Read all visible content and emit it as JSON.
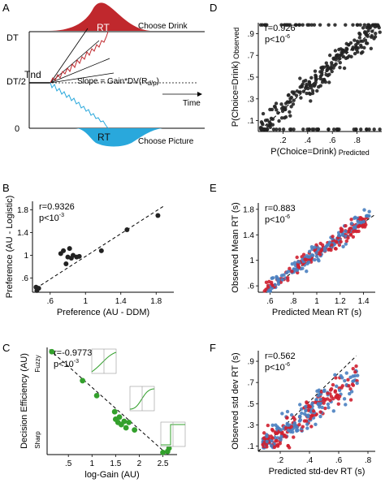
{
  "chart_data": [
    {
      "panel": "A",
      "type": "diagram",
      "labels": {
        "rt_top": "RT",
        "choose_drink": "Choose Drink",
        "dt": "DT",
        "dt_half": "DT/2",
        "tnd": "Tnd",
        "zero": "0",
        "slope": "Slope = Gain*DV(R",
        "slope_sub": "d/p",
        "slope_close": ")",
        "time": "Time",
        "rt_bottom": "RT",
        "choose_picture": "Choose Picture"
      },
      "colors": {
        "drink": "#c0282d",
        "picture": "#29a8dc"
      }
    },
    {
      "panel": "B",
      "type": "scatter",
      "xlabel": "Preference (AU - DDM)",
      "ylabel": "Preference (AU - Logistic)",
      "xlim": [
        0.4,
        2.0
      ],
      "ylim": [
        0.35,
        1.95
      ],
      "xticks": [
        {
          "v": 0.6,
          "t": ".6"
        },
        {
          "v": 1.0,
          "t": "1"
        },
        {
          "v": 1.4,
          "t": "1.4"
        },
        {
          "v": 1.8,
          "t": "1.8"
        }
      ],
      "yticks": [
        {
          "v": 0.6,
          "t": ".6"
        },
        {
          "v": 1.0,
          "t": "1"
        },
        {
          "v": 1.4,
          "t": "1.4"
        },
        {
          "v": 1.8,
          "t": "1.8"
        }
      ],
      "stats": [
        "r=0.9326",
        "p<10^-3"
      ],
      "fit": [
        [
          0.44,
          0.42
        ],
        [
          1.9,
          1.88
        ]
      ],
      "points": [
        [
          0.44,
          0.44
        ],
        [
          0.47,
          0.42
        ],
        [
          0.45,
          0.38
        ],
        [
          0.72,
          1.03
        ],
        [
          0.75,
          1.08
        ],
        [
          0.78,
          0.85
        ],
        [
          0.8,
          0.97
        ],
        [
          0.82,
          1.12
        ],
        [
          0.84,
          0.95
        ],
        [
          0.86,
          1.0
        ],
        [
          0.9,
          0.97
        ],
        [
          0.93,
          0.98
        ],
        [
          1.18,
          1.08
        ],
        [
          1.47,
          1.45
        ],
        [
          1.82,
          1.7
        ]
      ]
    },
    {
      "panel": "C",
      "type": "scatter",
      "xlabel": "log-Gain (AU)",
      "ylabel": "Decision Efficiency (AU)",
      "ytop": "Fuzzy",
      "ybottom": "Sharp",
      "xlim": [
        0.05,
        2.8
      ],
      "ylim": [
        0,
        1.0
      ],
      "xticks": [
        {
          "v": 0.5,
          "t": ".5"
        },
        {
          "v": 1.0,
          "t": "1"
        },
        {
          "v": 1.5,
          "t": "1.5"
        },
        {
          "v": 2.0,
          "t": "2"
        },
        {
          "v": 2.5,
          "t": "2.5"
        }
      ],
      "stats": [
        "r=-0.9773",
        "p<10^-3"
      ],
      "fit": [
        [
          0.1,
          0.98
        ],
        [
          2.6,
          0.0
        ]
      ],
      "points": [
        [
          0.15,
          0.96
        ],
        [
          0.8,
          0.69
        ],
        [
          1.1,
          0.55
        ],
        [
          1.48,
          0.4
        ],
        [
          1.5,
          0.33
        ],
        [
          1.55,
          0.3
        ],
        [
          1.58,
          0.35
        ],
        [
          1.62,
          0.28
        ],
        [
          1.68,
          0.31
        ],
        [
          1.72,
          0.25
        ],
        [
          1.78,
          0.3
        ],
        [
          1.9,
          0.23
        ],
        [
          2.5,
          0.02
        ],
        [
          2.6,
          0.03
        ],
        [
          2.63,
          0.06
        ]
      ],
      "color": "#33a02c"
    },
    {
      "panel": "D",
      "type": "scatter",
      "xlabel": "P(Choice=Drink)",
      "xlabel_sub": "Predicted",
      "ylabel": "P(Choice=Drink)",
      "ylabel_sub": "Observed",
      "xlim": [
        0,
        1.0
      ],
      "ylim": [
        0,
        1.0
      ],
      "xticks": [
        {
          "v": 0.2,
          "t": ".2"
        },
        {
          "v": 0.4,
          "t": ".4"
        },
        {
          "v": 0.6,
          "t": ".6"
        },
        {
          "v": 0.8,
          "t": ".8"
        }
      ],
      "yticks": [
        {
          "v": 0.1,
          "t": ".1"
        },
        {
          "v": 0.3,
          "t": ".3"
        },
        {
          "v": 0.5,
          "t": ".5"
        },
        {
          "v": 0.7,
          "t": ".7"
        },
        {
          "v": 0.9,
          "t": ".9"
        }
      ],
      "stats": [
        "r=0.926",
        "p<10^-6"
      ],
      "fit": [
        [
          0.02,
          0.02
        ],
        [
          0.98,
          0.98
        ]
      ],
      "n_points": 300
    },
    {
      "panel": "E",
      "type": "scatter",
      "xlabel": "Predicted Mean RT (s)",
      "ylabel": "Observed Mean RT (s)",
      "xlim": [
        0.5,
        1.5
      ],
      "ylim": [
        0.5,
        1.9
      ],
      "xticks": [
        {
          "v": 0.6,
          "t": ".6"
        },
        {
          "v": 0.8,
          "t": ".8"
        },
        {
          "v": 1.0,
          "t": "1"
        },
        {
          "v": 1.2,
          "t": "1.2"
        },
        {
          "v": 1.4,
          "t": "1.4"
        }
      ],
      "yticks": [
        {
          "v": 0.6,
          "t": ".6"
        },
        {
          "v": 1.0,
          "t": "1"
        },
        {
          "v": 1.4,
          "t": "1.4"
        },
        {
          "v": 1.8,
          "t": "1.8"
        }
      ],
      "stats": [
        "r=0.883",
        "p<10^-6"
      ],
      "fit": [
        [
          0.55,
          0.5
        ],
        [
          1.5,
          1.72
        ]
      ],
      "n_points": 280,
      "series_colors": [
        "#cf2030",
        "#4a7fc0"
      ]
    },
    {
      "panel": "F",
      "type": "scatter",
      "xlabel": "Predicted std-dev RT (s)",
      "ylabel": "Observed std dev RT (s)",
      "xlim": [
        0.05,
        0.85
      ],
      "ylim": [
        0.05,
        1.0
      ],
      "xticks": [
        {
          "v": 0.2,
          "t": ".2"
        },
        {
          "v": 0.4,
          "t": ".4"
        },
        {
          "v": 0.6,
          "t": ".6"
        },
        {
          "v": 0.8,
          "t": ".8"
        }
      ],
      "yticks": [
        {
          "v": 0.1,
          "t": ".1"
        },
        {
          "v": 0.3,
          "t": ".3"
        },
        {
          "v": 0.5,
          "t": ".5"
        },
        {
          "v": 0.7,
          "t": ".7"
        },
        {
          "v": 0.9,
          "t": ".9"
        }
      ],
      "stats": [
        "r=0.562",
        "p<10^-6"
      ],
      "fit": [
        [
          0.05,
          0.05
        ],
        [
          0.72,
          0.95
        ]
      ],
      "n_points": 300,
      "series_colors": [
        "#cf2030",
        "#4a7fc0"
      ]
    }
  ],
  "panel_letters": [
    "A",
    "B",
    "C",
    "D",
    "E",
    "F"
  ]
}
